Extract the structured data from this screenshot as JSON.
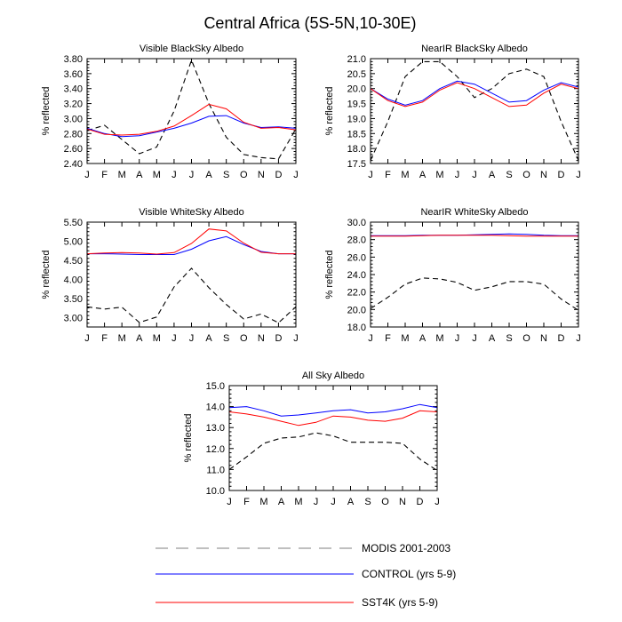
{
  "figure": {
    "title": "Central Africa (5S-5N,10-30E)"
  },
  "legend": {
    "entries": [
      {
        "label": "MODIS 2001-2003",
        "color": "#000000",
        "dash": "dashed"
      },
      {
        "label": "CONTROL (yrs 5-9)",
        "color": "#0000ff",
        "dash": "solid"
      },
      {
        "label": "SST4K (yrs 5-9)",
        "color": "#ff0000",
        "dash": "solid"
      }
    ]
  },
  "chart_data": [
    {
      "type": "line",
      "title": "Visible BlackSky Albedo",
      "ylabel": "% reflected",
      "categories": [
        "J",
        "F",
        "M",
        "A",
        "M",
        "J",
        "J",
        "A",
        "S",
        "O",
        "N",
        "D",
        "J"
      ],
      "ylim": [
        2.4,
        3.8
      ],
      "yticks": [
        "2.40",
        "2.60",
        "2.80",
        "3.00",
        "3.20",
        "3.40",
        "3.60",
        "3.80"
      ],
      "series": [
        {
          "values": [
            2.84,
            2.91,
            2.72,
            2.53,
            2.62,
            3.1,
            3.78,
            3.2,
            2.75,
            2.52,
            2.48,
            2.46,
            2.86
          ]
        },
        {
          "values": [
            2.87,
            2.8,
            2.76,
            2.77,
            2.82,
            2.87,
            2.94,
            3.03,
            3.04,
            2.94,
            2.88,
            2.89,
            2.87
          ]
        },
        {
          "values": [
            2.86,
            2.79,
            2.78,
            2.79,
            2.83,
            2.9,
            3.04,
            3.19,
            3.13,
            2.95,
            2.87,
            2.88,
            2.85
          ]
        }
      ]
    },
    {
      "type": "line",
      "title": "NearIR BlackSky Albedo",
      "ylabel": "% reflected",
      "categories": [
        "J",
        "F",
        "M",
        "A",
        "M",
        "J",
        "J",
        "A",
        "S",
        "O",
        "N",
        "D",
        "J"
      ],
      "ylim": [
        17.5,
        21.0
      ],
      "yticks": [
        "17.5",
        "18.0",
        "18.5",
        "19.0",
        "19.5",
        "20.0",
        "20.5",
        "21.0"
      ],
      "series": [
        {
          "values": [
            17.6,
            18.9,
            20.4,
            20.9,
            20.9,
            20.4,
            19.7,
            20.0,
            20.5,
            20.65,
            20.4,
            18.9,
            17.6
          ]
        },
        {
          "values": [
            20.0,
            19.65,
            19.45,
            19.6,
            20.0,
            20.25,
            20.15,
            19.85,
            19.55,
            19.6,
            19.95,
            20.2,
            20.05
          ]
        },
        {
          "values": [
            20.0,
            19.6,
            19.4,
            19.55,
            19.95,
            20.2,
            20.0,
            19.7,
            19.4,
            19.45,
            19.85,
            20.15,
            20.0
          ]
        }
      ]
    },
    {
      "type": "line",
      "title": "Visible WhiteSky Albedo",
      "ylabel": "% reflected",
      "categories": [
        "J",
        "F",
        "M",
        "A",
        "M",
        "J",
        "J",
        "A",
        "S",
        "O",
        "N",
        "D",
        "J"
      ],
      "ylim": [
        2.75,
        5.5
      ],
      "yticks": [
        "3.00",
        "3.50",
        "4.00",
        "4.50",
        "5.00",
        "5.50"
      ],
      "series": [
        {
          "values": [
            3.28,
            3.22,
            3.27,
            2.87,
            3.01,
            3.8,
            4.29,
            3.78,
            3.34,
            2.96,
            3.09,
            2.86,
            3.28
          ]
        },
        {
          "values": [
            4.67,
            4.67,
            4.66,
            4.65,
            4.65,
            4.65,
            4.79,
            5.01,
            5.12,
            4.91,
            4.73,
            4.67,
            4.67
          ]
        },
        {
          "values": [
            4.67,
            4.69,
            4.7,
            4.69,
            4.66,
            4.7,
            4.94,
            5.32,
            5.27,
            4.95,
            4.71,
            4.67,
            4.67
          ]
        }
      ]
    },
    {
      "type": "line",
      "title": "NearIR WhiteSky Albedo",
      "ylabel": "% reflected",
      "categories": [
        "J",
        "F",
        "M",
        "A",
        "M",
        "J",
        "J",
        "A",
        "S",
        "O",
        "N",
        "D",
        "J"
      ],
      "ylim": [
        18.0,
        30.0
      ],
      "yticks": [
        "18.0",
        "20.0",
        "22.0",
        "24.0",
        "26.0",
        "28.0",
        "30.0"
      ],
      "series": [
        {
          "values": [
            20.1,
            21.4,
            22.9,
            23.6,
            23.5,
            23.1,
            22.2,
            22.6,
            23.2,
            23.2,
            22.9,
            21.2,
            19.9
          ]
        },
        {
          "values": [
            28.45,
            28.45,
            28.45,
            28.5,
            28.5,
            28.5,
            28.55,
            28.6,
            28.65,
            28.6,
            28.5,
            28.45,
            28.45
          ]
        },
        {
          "values": [
            28.4,
            28.4,
            28.4,
            28.45,
            28.5,
            28.5,
            28.5,
            28.5,
            28.45,
            28.4,
            28.4,
            28.4,
            28.4
          ]
        }
      ]
    },
    {
      "type": "line",
      "title": "All Sky Albedo",
      "ylabel": "% reflected",
      "categories": [
        "J",
        "F",
        "M",
        "A",
        "M",
        "J",
        "J",
        "A",
        "S",
        "O",
        "N",
        "D",
        "J"
      ],
      "ylim": [
        10.0,
        15.0
      ],
      "yticks": [
        "10.0",
        "11.0",
        "12.0",
        "13.0",
        "14.0",
        "15.0"
      ],
      "series": [
        {
          "values": [
            11.0,
            11.6,
            12.25,
            12.5,
            12.55,
            12.75,
            12.6,
            12.3,
            12.3,
            12.3,
            12.25,
            11.5,
            10.95
          ]
        },
        {
          "values": [
            13.95,
            14.0,
            13.8,
            13.55,
            13.6,
            13.7,
            13.8,
            13.85,
            13.7,
            13.75,
            13.9,
            14.1,
            13.95
          ]
        },
        {
          "values": [
            13.75,
            13.65,
            13.5,
            13.3,
            13.1,
            13.25,
            13.55,
            13.5,
            13.35,
            13.3,
            13.45,
            13.8,
            13.75
          ]
        }
      ]
    }
  ]
}
